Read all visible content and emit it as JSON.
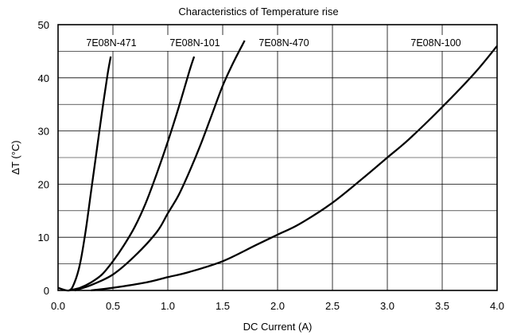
{
  "chart_data": {
    "type": "line",
    "title": "Characteristics of Temperature rise",
    "xlabel": "DC Current (A)",
    "ylabel": "ΔT (°C)",
    "xlim": [
      0,
      4
    ],
    "ylim": [
      0,
      50
    ],
    "x_ticks": [
      "0.0",
      "0.5",
      "1.0",
      "1.5",
      "2.0",
      "2.5",
      "3.0",
      "3.5",
      "4.0"
    ],
    "y_ticks": [
      "0",
      "10",
      "20",
      "30",
      "40",
      "50"
    ],
    "grid": "on",
    "series": [
      {
        "name": "7E08N-471",
        "x": [
          0.0,
          0.1,
          0.15,
          0.2,
          0.25,
          0.3,
          0.35,
          0.4,
          0.45,
          0.48
        ],
        "y": [
          0.5,
          0.0,
          1.5,
          5.0,
          11.0,
          18.5,
          26.0,
          33.5,
          40.5,
          44.0
        ]
      },
      {
        "name": "7E08N-101",
        "x": [
          0.1,
          0.2,
          0.3,
          0.4,
          0.5,
          0.6,
          0.7,
          0.8,
          0.9,
          1.0,
          1.1,
          1.2,
          1.24
        ],
        "y": [
          0.0,
          0.5,
          1.5,
          3.0,
          5.5,
          8.5,
          12.0,
          16.5,
          22.0,
          28.0,
          34.5,
          41.5,
          44.0
        ]
      },
      {
        "name": "7E08N-470",
        "x": [
          0.15,
          0.3,
          0.5,
          0.7,
          0.9,
          1.0,
          1.1,
          1.2,
          1.3,
          1.4,
          1.5,
          1.6,
          1.7
        ],
        "y": [
          0.0,
          1.0,
          3.0,
          6.5,
          11.0,
          14.5,
          18.0,
          22.5,
          27.5,
          33.0,
          38.5,
          43.0,
          47.0
        ]
      },
      {
        "name": "7E08N-100",
        "x": [
          0.3,
          0.5,
          0.8,
          1.0,
          1.2,
          1.5,
          1.8,
          2.0,
          2.2,
          2.5,
          2.8,
          3.0,
          3.2,
          3.5,
          3.8,
          4.0
        ],
        "y": [
          0.0,
          0.5,
          1.5,
          2.5,
          3.5,
          5.5,
          8.5,
          10.5,
          12.5,
          16.5,
          21.5,
          25.0,
          28.5,
          34.5,
          41.0,
          46.0
        ]
      }
    ]
  }
}
